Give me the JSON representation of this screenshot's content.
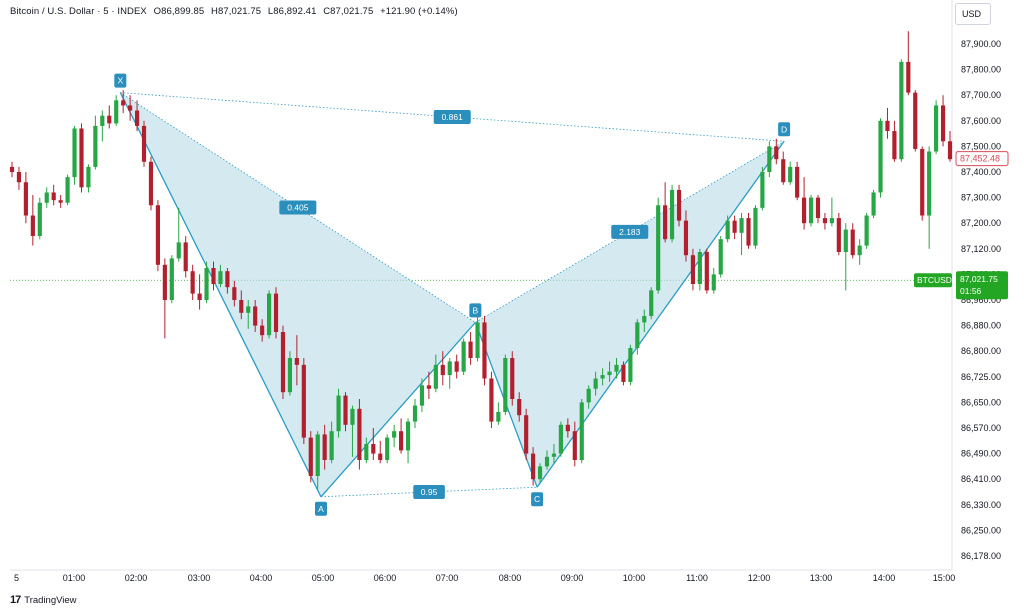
{
  "header": {
    "symbol": "Bitcoin / U.S. Dollar · 5 · INDEX",
    "open": "O86,899.85",
    "high": "H87,021.75",
    "low": "L86,892.41",
    "close": "C87,021.75",
    "change": "+121.90 (+0.14%)"
  },
  "currency": "USD",
  "footer": {
    "brand": "TradingView"
  },
  "colors": {
    "up": "#26a644",
    "down": "#b2202e",
    "pattern_fill": "#b9dbe8",
    "pattern_line": "#2a9dc4",
    "label_bg": "#2a8fbd",
    "current_price": "#23a623",
    "last_price_box": "#d94c5a"
  },
  "chart_data": {
    "type": "candlestick",
    "y_ticks": [
      "87,900.00",
      "87,800.00",
      "87,700.00",
      "87,600.00",
      "87,500.00",
      "87,400.00",
      "87,300.00",
      "87,200.00",
      "87,120.00",
      "87,040.00",
      "86,960.00",
      "86,880.00",
      "86,800.00",
      "86,725.00",
      "86,650.00",
      "86,570.00",
      "86,490.00",
      "86,410.00",
      "86,330.00",
      "86,250.00",
      "86,178.00"
    ],
    "x_ticks": [
      "5",
      "01:00",
      "02:00",
      "03:00",
      "04:00",
      "05:00",
      "06:00",
      "07:00",
      "08:00",
      "09:00",
      "10:00",
      "11:00",
      "12:00",
      "13:00",
      "14:00",
      "15:00"
    ],
    "xabcd": {
      "points": [
        {
          "label": "X",
          "time": "01:45",
          "price": 87710
        },
        {
          "label": "A",
          "time": "05:00",
          "price": 86355
        },
        {
          "label": "B",
          "time": "07:30",
          "price": 86890
        },
        {
          "label": "C",
          "time": "08:30",
          "price": 86385
        },
        {
          "label": "D",
          "time": "12:30",
          "price": 87520
        }
      ],
      "ratios": [
        {
          "value": "0.405",
          "between": "XB"
        },
        {
          "value": "0.861",
          "between": "XD"
        },
        {
          "value": "0.95",
          "between": "AC"
        },
        {
          "value": "2.183",
          "between": "BD"
        }
      ]
    },
    "last_price": {
      "value": "87,452.48"
    },
    "current_price": {
      "symbol": "BTCUSD",
      "value": "87,021.75",
      "countdown": "01:56",
      "price": 87021.75
    },
    "candles": [
      {
        "o": 87420,
        "h": 87440,
        "l": 87380,
        "c": 87400
      },
      {
        "o": 87400,
        "h": 87420,
        "l": 87330,
        "c": 87360
      },
      {
        "o": 87360,
        "h": 87400,
        "l": 87200,
        "c": 87230
      },
      {
        "o": 87230,
        "h": 87310,
        "l": 87130,
        "c": 87160
      },
      {
        "o": 87160,
        "h": 87300,
        "l": 87150,
        "c": 87280
      },
      {
        "o": 87280,
        "h": 87340,
        "l": 87260,
        "c": 87320
      },
      {
        "o": 87320,
        "h": 87350,
        "l": 87270,
        "c": 87290
      },
      {
        "o": 87290,
        "h": 87310,
        "l": 87260,
        "c": 87280
      },
      {
        "o": 87280,
        "h": 87390,
        "l": 87270,
        "c": 87380
      },
      {
        "o": 87380,
        "h": 87580,
        "l": 87350,
        "c": 87570
      },
      {
        "o": 87570,
        "h": 87590,
        "l": 87320,
        "c": 87340
      },
      {
        "o": 87340,
        "h": 87430,
        "l": 87320,
        "c": 87420
      },
      {
        "o": 87420,
        "h": 87620,
        "l": 87410,
        "c": 87580
      },
      {
        "o": 87580,
        "h": 87640,
        "l": 87520,
        "c": 87620
      },
      {
        "o": 87620,
        "h": 87660,
        "l": 87570,
        "c": 87590
      },
      {
        "o": 87590,
        "h": 87700,
        "l": 87580,
        "c": 87680
      },
      {
        "o": 87680,
        "h": 87720,
        "l": 87630,
        "c": 87660
      },
      {
        "o": 87660,
        "h": 87700,
        "l": 87600,
        "c": 87640
      },
      {
        "o": 87640,
        "h": 87680,
        "l": 87560,
        "c": 87580
      },
      {
        "o": 87580,
        "h": 87600,
        "l": 87420,
        "c": 87440
      },
      {
        "o": 87440,
        "h": 87460,
        "l": 87250,
        "c": 87270
      },
      {
        "o": 87270,
        "h": 87290,
        "l": 87050,
        "c": 87070
      },
      {
        "o": 87070,
        "h": 87090,
        "l": 86840,
        "c": 86960
      },
      {
        "o": 86960,
        "h": 87100,
        "l": 86950,
        "c": 87090
      },
      {
        "o": 87090,
        "h": 87260,
        "l": 87080,
        "c": 87140
      },
      {
        "o": 87140,
        "h": 87160,
        "l": 87030,
        "c": 87050
      },
      {
        "o": 87050,
        "h": 87070,
        "l": 86960,
        "c": 86980
      },
      {
        "o": 86980,
        "h": 87040,
        "l": 86930,
        "c": 86960
      },
      {
        "o": 86960,
        "h": 87080,
        "l": 86950,
        "c": 87060
      },
      {
        "o": 87060,
        "h": 87080,
        "l": 86990,
        "c": 87010
      },
      {
        "o": 87010,
        "h": 87070,
        "l": 87000,
        "c": 87050
      },
      {
        "o": 87050,
        "h": 87060,
        "l": 86980,
        "c": 87000
      },
      {
        "o": 87000,
        "h": 87020,
        "l": 86940,
        "c": 86960
      },
      {
        "o": 86960,
        "h": 86990,
        "l": 86900,
        "c": 86920
      },
      {
        "o": 86920,
        "h": 86960,
        "l": 86870,
        "c": 86940
      },
      {
        "o": 86940,
        "h": 86960,
        "l": 86860,
        "c": 86880
      },
      {
        "o": 86880,
        "h": 86900,
        "l": 86830,
        "c": 86850
      },
      {
        "o": 86850,
        "h": 86990,
        "l": 86840,
        "c": 86980
      },
      {
        "o": 86980,
        "h": 87000,
        "l": 86840,
        "c": 86860
      },
      {
        "o": 86860,
        "h": 86880,
        "l": 86660,
        "c": 86680
      },
      {
        "o": 86680,
        "h": 86800,
        "l": 86670,
        "c": 86780
      },
      {
        "o": 86780,
        "h": 86850,
        "l": 86700,
        "c": 86760
      },
      {
        "o": 86760,
        "h": 86780,
        "l": 86520,
        "c": 86540
      },
      {
        "o": 86540,
        "h": 86560,
        "l": 86400,
        "c": 86420
      },
      {
        "o": 86420,
        "h": 86560,
        "l": 86380,
        "c": 86550
      },
      {
        "o": 86550,
        "h": 86580,
        "l": 86440,
        "c": 86470
      },
      {
        "o": 86470,
        "h": 86590,
        "l": 86460,
        "c": 86560
      },
      {
        "o": 86560,
        "h": 86690,
        "l": 86540,
        "c": 86670
      },
      {
        "o": 86670,
        "h": 86680,
        "l": 86560,
        "c": 86580
      },
      {
        "o": 86580,
        "h": 86640,
        "l": 86480,
        "c": 86630
      },
      {
        "o": 86630,
        "h": 86660,
        "l": 86440,
        "c": 86470
      },
      {
        "o": 86470,
        "h": 86540,
        "l": 86460,
        "c": 86520
      },
      {
        "o": 86520,
        "h": 86570,
        "l": 86470,
        "c": 86490
      },
      {
        "o": 86490,
        "h": 86530,
        "l": 86460,
        "c": 86470
      },
      {
        "o": 86470,
        "h": 86550,
        "l": 86460,
        "c": 86540
      },
      {
        "o": 86540,
        "h": 86580,
        "l": 86510,
        "c": 86560
      },
      {
        "o": 86560,
        "h": 86600,
        "l": 86490,
        "c": 86500
      },
      {
        "o": 86500,
        "h": 86600,
        "l": 86460,
        "c": 86590
      },
      {
        "o": 86590,
        "h": 86660,
        "l": 86570,
        "c": 86640
      },
      {
        "o": 86640,
        "h": 86720,
        "l": 86620,
        "c": 86700
      },
      {
        "o": 86700,
        "h": 86740,
        "l": 86660,
        "c": 86690
      },
      {
        "o": 86690,
        "h": 86790,
        "l": 86680,
        "c": 86760
      },
      {
        "o": 86760,
        "h": 86800,
        "l": 86700,
        "c": 86730
      },
      {
        "o": 86730,
        "h": 86780,
        "l": 86690,
        "c": 86770
      },
      {
        "o": 86770,
        "h": 86790,
        "l": 86720,
        "c": 86740
      },
      {
        "o": 86740,
        "h": 86840,
        "l": 86730,
        "c": 86830
      },
      {
        "o": 86830,
        "h": 86860,
        "l": 86760,
        "c": 86780
      },
      {
        "o": 86780,
        "h": 86910,
        "l": 86770,
        "c": 86890
      },
      {
        "o": 86890,
        "h": 86910,
        "l": 86700,
        "c": 86720
      },
      {
        "o": 86720,
        "h": 86740,
        "l": 86570,
        "c": 86590
      },
      {
        "o": 86590,
        "h": 86650,
        "l": 86580,
        "c": 86620
      },
      {
        "o": 86620,
        "h": 86790,
        "l": 86610,
        "c": 86780
      },
      {
        "o": 86780,
        "h": 86800,
        "l": 86640,
        "c": 86660
      },
      {
        "o": 86660,
        "h": 86680,
        "l": 86590,
        "c": 86610
      },
      {
        "o": 86610,
        "h": 86630,
        "l": 86470,
        "c": 86490
      },
      {
        "o": 86490,
        "h": 86510,
        "l": 86390,
        "c": 86410
      },
      {
        "o": 86410,
        "h": 86460,
        "l": 86400,
        "c": 86450
      },
      {
        "o": 86450,
        "h": 86500,
        "l": 86440,
        "c": 86480
      },
      {
        "o": 86480,
        "h": 86520,
        "l": 86460,
        "c": 86490
      },
      {
        "o": 86490,
        "h": 86590,
        "l": 86480,
        "c": 86580
      },
      {
        "o": 86580,
        "h": 86600,
        "l": 86540,
        "c": 86560
      },
      {
        "o": 86560,
        "h": 86590,
        "l": 86450,
        "c": 86470
      },
      {
        "o": 86470,
        "h": 86660,
        "l": 86460,
        "c": 86650
      },
      {
        "o": 86650,
        "h": 86700,
        "l": 86630,
        "c": 86690
      },
      {
        "o": 86690,
        "h": 86740,
        "l": 86670,
        "c": 86720
      },
      {
        "o": 86720,
        "h": 86750,
        "l": 86700,
        "c": 86730
      },
      {
        "o": 86730,
        "h": 86770,
        "l": 86710,
        "c": 86740
      },
      {
        "o": 86740,
        "h": 86780,
        "l": 86720,
        "c": 86760
      },
      {
        "o": 86760,
        "h": 86770,
        "l": 86700,
        "c": 86710
      },
      {
        "o": 86710,
        "h": 86820,
        "l": 86700,
        "c": 86810
      },
      {
        "o": 86810,
        "h": 86900,
        "l": 86790,
        "c": 86890
      },
      {
        "o": 86890,
        "h": 86930,
        "l": 86860,
        "c": 86910
      },
      {
        "o": 86910,
        "h": 87000,
        "l": 86900,
        "c": 86990
      },
      {
        "o": 86990,
        "h": 87300,
        "l": 86980,
        "c": 87270
      },
      {
        "o": 87270,
        "h": 87360,
        "l": 87140,
        "c": 87150
      },
      {
        "o": 87150,
        "h": 87350,
        "l": 87140,
        "c": 87330
      },
      {
        "o": 87330,
        "h": 87350,
        "l": 87190,
        "c": 87210
      },
      {
        "o": 87210,
        "h": 87250,
        "l": 87080,
        "c": 87100
      },
      {
        "o": 87100,
        "h": 87120,
        "l": 86990,
        "c": 87010
      },
      {
        "o": 87010,
        "h": 87120,
        "l": 86990,
        "c": 87110
      },
      {
        "o": 87110,
        "h": 87120,
        "l": 86980,
        "c": 86990
      },
      {
        "o": 86990,
        "h": 87060,
        "l": 86980,
        "c": 87040
      },
      {
        "o": 87040,
        "h": 87160,
        "l": 87030,
        "c": 87150
      },
      {
        "o": 87150,
        "h": 87230,
        "l": 87140,
        "c": 87210
      },
      {
        "o": 87210,
        "h": 87230,
        "l": 87150,
        "c": 87170
      },
      {
        "o": 87170,
        "h": 87240,
        "l": 87100,
        "c": 87220
      },
      {
        "o": 87220,
        "h": 87240,
        "l": 87120,
        "c": 87130
      },
      {
        "o": 87130,
        "h": 87270,
        "l": 87120,
        "c": 87260
      },
      {
        "o": 87260,
        "h": 87420,
        "l": 87250,
        "c": 87400
      },
      {
        "o": 87400,
        "h": 87520,
        "l": 87380,
        "c": 87500
      },
      {
        "o": 87500,
        "h": 87530,
        "l": 87430,
        "c": 87450
      },
      {
        "o": 87450,
        "h": 87480,
        "l": 87350,
        "c": 87360
      },
      {
        "o": 87360,
        "h": 87440,
        "l": 87350,
        "c": 87420
      },
      {
        "o": 87420,
        "h": 87440,
        "l": 87290,
        "c": 87300
      },
      {
        "o": 87300,
        "h": 87380,
        "l": 87180,
        "c": 87200
      },
      {
        "o": 87200,
        "h": 87310,
        "l": 87190,
        "c": 87300
      },
      {
        "o": 87300,
        "h": 87310,
        "l": 87200,
        "c": 87220
      },
      {
        "o": 87220,
        "h": 87240,
        "l": 87180,
        "c": 87200
      },
      {
        "o": 87200,
        "h": 87300,
        "l": 87190,
        "c": 87220
      },
      {
        "o": 87220,
        "h": 87240,
        "l": 87100,
        "c": 87110
      },
      {
        "o": 87110,
        "h": 87200,
        "l": 86990,
        "c": 87180
      },
      {
        "o": 87180,
        "h": 87200,
        "l": 87090,
        "c": 87100
      },
      {
        "o": 87100,
        "h": 87150,
        "l": 87070,
        "c": 87130
      },
      {
        "o": 87130,
        "h": 87240,
        "l": 87120,
        "c": 87230
      },
      {
        "o": 87230,
        "h": 87330,
        "l": 87220,
        "c": 87320
      },
      {
        "o": 87320,
        "h": 87610,
        "l": 87300,
        "c": 87600
      },
      {
        "o": 87600,
        "h": 87650,
        "l": 87530,
        "c": 87560
      },
      {
        "o": 87560,
        "h": 87600,
        "l": 87440,
        "c": 87450
      },
      {
        "o": 87450,
        "h": 87840,
        "l": 87440,
        "c": 87830
      },
      {
        "o": 87830,
        "h": 87950,
        "l": 87700,
        "c": 87710
      },
      {
        "o": 87710,
        "h": 87720,
        "l": 87480,
        "c": 87490
      },
      {
        "o": 87490,
        "h": 87500,
        "l": 87210,
        "c": 87230
      },
      {
        "o": 87230,
        "h": 87500,
        "l": 87120,
        "c": 87480
      },
      {
        "o": 87480,
        "h": 87680,
        "l": 87470,
        "c": 87660
      },
      {
        "o": 87660,
        "h": 87700,
        "l": 87500,
        "c": 87520
      },
      {
        "o": 87520,
        "h": 87560,
        "l": 87440,
        "c": 87450
      }
    ]
  }
}
